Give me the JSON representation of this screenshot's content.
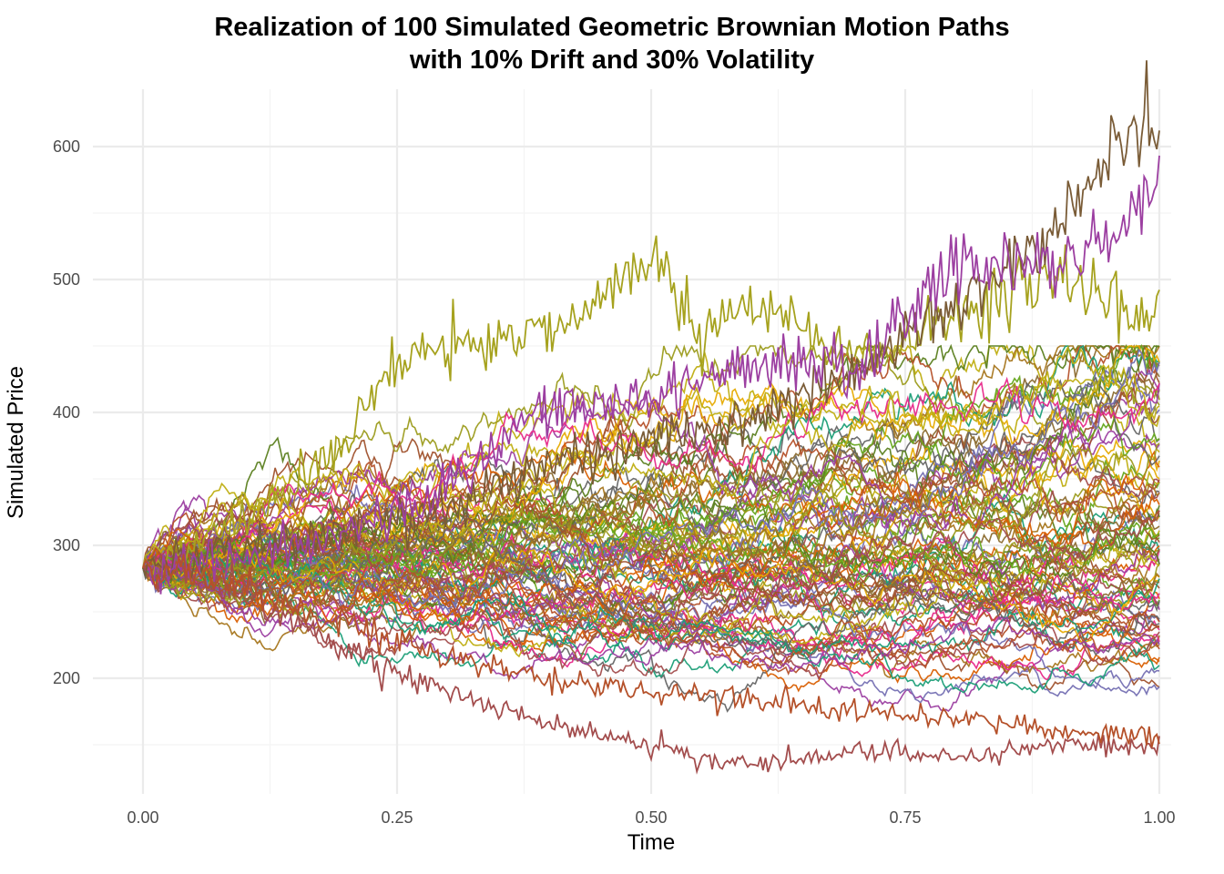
{
  "chart_data": {
    "type": "line",
    "title": "Realization of 100 Simulated Geometric Brownian Motion Paths",
    "subtitle": "with 10% Drift and 30% Volatility",
    "xlabel": "Time",
    "ylabel": "Simulated Price",
    "xlim": [
      0,
      1
    ],
    "ylim": [
      130,
      640
    ],
    "x_ticks": [
      {
        "value": 0,
        "label": "0.00"
      },
      {
        "value": 0.25,
        "label": "0.25"
      },
      {
        "value": 0.5,
        "label": "0.50"
      },
      {
        "value": 0.75,
        "label": "0.75"
      },
      {
        "value": 1,
        "label": "1.00"
      }
    ],
    "y_ticks": [
      {
        "value": 200,
        "label": "200"
      },
      {
        "value": 300,
        "label": "300"
      },
      {
        "value": 400,
        "label": "400"
      },
      {
        "value": 500,
        "label": "500"
      },
      {
        "value": 600,
        "label": "600"
      }
    ],
    "grid": true,
    "legend": "none",
    "initial_price": 283,
    "drift": 0.1,
    "volatility": 0.3,
    "n_paths": 100,
    "n_steps": 400,
    "highlighted_paths": [
      {
        "x": [
          0,
          0.1,
          0.2,
          0.3,
          0.4,
          0.5,
          0.55,
          0.6,
          0.7,
          0.8,
          0.9,
          1.0
        ],
        "y": [
          283,
          265,
          220,
          190,
          165,
          150,
          140,
          135,
          145,
          140,
          150,
          148
        ]
      },
      {
        "x": [
          0,
          0.1,
          0.2,
          0.25,
          0.3,
          0.4,
          0.5,
          0.55,
          0.6,
          0.7,
          0.8,
          0.9,
          1.0
        ],
        "y": [
          283,
          320,
          380,
          440,
          450,
          460,
          515,
          465,
          480,
          440,
          470,
          500,
          465
        ]
      },
      {
        "x": [
          0,
          0.1,
          0.2,
          0.3,
          0.4,
          0.5,
          0.6,
          0.7,
          0.8,
          0.9,
          0.97,
          1.0
        ],
        "y": [
          283,
          300,
          310,
          330,
          360,
          380,
          400,
          430,
          480,
          540,
          615,
          605
        ]
      },
      {
        "x": [
          0,
          0.1,
          0.2,
          0.3,
          0.4,
          0.5,
          0.6,
          0.7,
          0.8,
          0.9,
          0.95,
          1.0
        ],
        "y": [
          283,
          290,
          310,
          340,
          410,
          410,
          440,
          430,
          515,
          510,
          530,
          578
        ]
      },
      {
        "x": [
          0,
          0.1,
          0.2,
          0.3,
          0.4,
          0.5,
          0.6,
          0.7,
          0.8,
          0.9,
          1.0
        ],
        "y": [
          283,
          270,
          240,
          215,
          200,
          190,
          185,
          175,
          170,
          160,
          155
        ]
      }
    ]
  },
  "colors": {
    "palette": [
      "#1b9e77",
      "#d95f02",
      "#7570b3",
      "#e7298a",
      "#66a61e",
      "#e6ab02",
      "#a6761d",
      "#666666",
      "#9c9c1e",
      "#8c6d31",
      "#b5512a",
      "#9c3fa1",
      "#a0522d",
      "#bfae12",
      "#a34d4d",
      "#5b7f1f"
    ],
    "highlight": [
      "#a34d4d",
      "#a6a21e",
      "#7a5c37",
      "#9c3fa1",
      "#b5512a"
    ],
    "grid_major": "#ebebeb",
    "grid_minor": "#f4f4f4"
  }
}
